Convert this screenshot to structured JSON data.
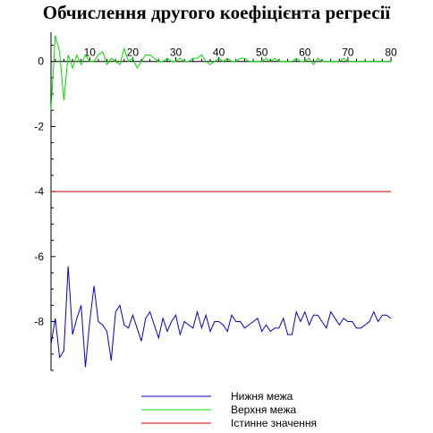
{
  "chart_data": {
    "type": "line",
    "title": "Обчислення другого коефіцієнта регресії",
    "xlabel": "",
    "ylabel": "",
    "xlim": [
      1,
      80
    ],
    "ylim": [
      -9.5,
      0.9
    ],
    "x_ticks": [
      10,
      20,
      30,
      40,
      50,
      60,
      70,
      80
    ],
    "y_ticks": [
      0,
      -2,
      -4,
      -6,
      -8
    ],
    "legend_position": "bottom",
    "colors": {
      "lower": "#0000cc",
      "upper": "#00dd00",
      "true": "#cc0000"
    },
    "series": [
      {
        "name": "Нижня межа",
        "color": "#0000cc",
        "x": [
          1,
          2,
          3,
          4,
          5,
          6,
          7,
          8,
          9,
          10,
          11,
          12,
          13,
          14,
          15,
          16,
          17,
          18,
          19,
          20,
          21,
          22,
          23,
          24,
          25,
          26,
          27,
          28,
          29,
          30,
          31,
          32,
          33,
          34,
          35,
          36,
          37,
          38,
          39,
          40,
          41,
          42,
          43,
          44,
          45,
          46,
          47,
          48,
          49,
          50,
          51,
          52,
          53,
          54,
          55,
          56,
          57,
          58,
          59,
          60,
          61,
          62,
          63,
          64,
          65,
          66,
          67,
          68,
          69,
          70,
          71,
          72,
          73,
          74,
          75,
          76,
          77,
          78,
          79,
          80
        ],
        "values": [
          -8.7,
          -7.9,
          -9.1,
          -8.9,
          -6.3,
          -8.4,
          -7.9,
          -7.5,
          -9.4,
          -8.0,
          -6.9,
          -8.0,
          -8.1,
          -8.3,
          -9.2,
          -7.7,
          -7.5,
          -8.1,
          -8.2,
          -7.8,
          -8.2,
          -8.6,
          -7.9,
          -7.7,
          -8.1,
          -8.5,
          -7.9,
          -8.3,
          -8.0,
          -7.8,
          -8.4,
          -8.0,
          -8.1,
          -8.2,
          -7.7,
          -8.2,
          -7.8,
          -8.3,
          -8.0,
          -8.0,
          -8.1,
          -8.3,
          -7.8,
          -8.0,
          -8.0,
          -8.2,
          -8.1,
          -8.0,
          -7.9,
          -8.3,
          -8.1,
          -8.3,
          -8.2,
          -8.2,
          -7.9,
          -8.4,
          -8.4,
          -7.7,
          -8.0,
          -7.7,
          -8.1,
          -7.8,
          -7.8,
          -8.0,
          -8.2,
          -7.7,
          -7.9,
          -8.1,
          -7.9,
          -8.0,
          -8.0,
          -8.2,
          -8.2,
          -8.1,
          -8.0,
          -7.7,
          -8.0,
          -7.8,
          -7.8,
          -7.9
        ]
      },
      {
        "name": "Верхня межа",
        "color": "#00dd00",
        "x": [
          1,
          2,
          3,
          4,
          5,
          6,
          7,
          8,
          9,
          10,
          11,
          12,
          13,
          14,
          15,
          16,
          17,
          18,
          19,
          20,
          21,
          22,
          23,
          24,
          25,
          26,
          27,
          28,
          29,
          30,
          31,
          32,
          33,
          34,
          35,
          36,
          37,
          38,
          39,
          40,
          41,
          42,
          43,
          44,
          45,
          46,
          47,
          48,
          49,
          50,
          51,
          52,
          53,
          54,
          55,
          56,
          57,
          58,
          59,
          60,
          61,
          62,
          63,
          64,
          65,
          66,
          67,
          68,
          69,
          70,
          71,
          72,
          73,
          74,
          75,
          76,
          77,
          78,
          79,
          80
        ],
        "values": [
          -1.5,
          0.8,
          0.3,
          -1.2,
          0.2,
          -0.2,
          0.2,
          -0.1,
          0.2,
          0.0,
          0.0,
          0.2,
          0.3,
          -0.1,
          0.1,
          0.0,
          -0.1,
          0.4,
          0.0,
          0.1,
          -0.2,
          0.0,
          0.2,
          0.2,
          0.1,
          0.0,
          0.0,
          0.1,
          0.0,
          0.0,
          0.1,
          0.0,
          0.0,
          0.1,
          0.1,
          0.2,
          0.0,
          -0.1,
          0.0,
          0.1,
          0.0,
          0.1,
          0.0,
          0.0,
          0.1,
          0.1,
          0.0,
          0.0,
          0.0,
          0.0,
          0.1,
          0.0,
          0.1,
          0.0,
          0.0,
          0.0,
          0.0,
          0.1,
          0.0,
          0.0,
          0.1,
          -0.1,
          0.1,
          0.0,
          0.0,
          0.0,
          0.0,
          0.0,
          0.1,
          0.0,
          0.0,
          0.0,
          0.0,
          0.0,
          0.0,
          0.0,
          0.0,
          0.0,
          0.0,
          0.0
        ]
      },
      {
        "name": "Істинне значення",
        "color": "#cc0000",
        "x": [
          1,
          80
        ],
        "values": [
          -4,
          -4
        ]
      }
    ]
  }
}
